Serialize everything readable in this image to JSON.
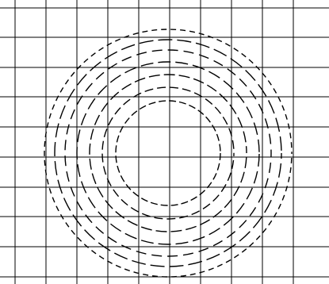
{
  "figure": {
    "background_color": "#ffffff",
    "grid_color": "#000000",
    "ring_color": "#000000",
    "grid": {
      "columns": 10,
      "rows": 9
    },
    "rings": {
      "count": 7,
      "style": "dashed concentric circles"
    }
  }
}
